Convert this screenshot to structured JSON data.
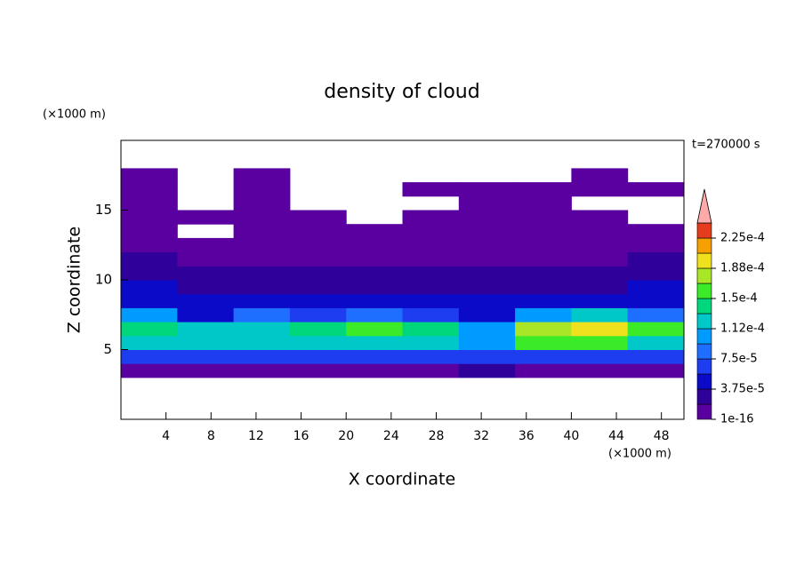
{
  "chart_data": {
    "type": "contour",
    "title": "density of cloud",
    "x_label": "X coordinate",
    "y_label": "Z coordinate",
    "x_unit": "(×1000 m)",
    "y_unit": "(×1000 m)",
    "annotation": "t=270000 s",
    "xlim": [
      0,
      50
    ],
    "ylim": [
      0,
      20
    ],
    "xticks": [
      4,
      8,
      12,
      16,
      20,
      24,
      28,
      32,
      36,
      40,
      44,
      48
    ],
    "yticks": [
      5,
      10,
      15
    ],
    "x_edges": [
      0,
      5,
      10,
      15,
      20,
      25,
      30,
      35,
      40,
      45,
      50
    ],
    "z_edges": [
      3,
      4,
      5,
      6,
      7,
      8,
      9,
      10,
      11,
      12,
      13,
      14,
      15,
      16,
      17,
      18
    ],
    "z": [
      [
        1e-05,
        1e-05,
        1e-05,
        1e-05,
        1e-05,
        1e-05,
        2e-05,
        1e-05,
        1e-05,
        1e-05
      ],
      [
        6e-05,
        6e-05,
        7e-05,
        6e-05,
        6e-05,
        6e-05,
        7e-05,
        6e-05,
        6e-05,
        6e-05
      ],
      [
        0.00013,
        0.00012,
        0.00012,
        0.00013,
        0.00013,
        0.00012,
        0.0001,
        0.00015,
        0.00015,
        0.00013
      ],
      [
        0.00014,
        0.00012,
        0.00013,
        0.00014,
        0.00015,
        0.00014,
        0.00011,
        0.00018,
        0.0002,
        0.00015
      ],
      [
        0.00011,
        5e-05,
        9e-05,
        7e-05,
        8e-05,
        7e-05,
        5e-05,
        0.00011,
        0.00013,
        9e-05
      ],
      [
        5e-05,
        4e-05,
        5e-05,
        4e-05,
        4e-05,
        4e-05,
        4e-05,
        5e-05,
        5e-05,
        5e-05
      ],
      [
        4e-05,
        3e-05,
        3e-05,
        3e-05,
        3e-05,
        3e-05,
        3e-05,
        3e-05,
        3e-05,
        4e-05
      ],
      [
        3e-05,
        2e-05,
        2.5e-05,
        2e-05,
        2e-05,
        2e-05,
        2e-05,
        2e-05,
        2e-05,
        3e-05
      ],
      [
        2e-05,
        1e-05,
        1.5e-05,
        1.5e-05,
        1e-05,
        1.5e-05,
        1.5e-05,
        1e-05,
        1e-05,
        2e-05
      ],
      [
        1e-05,
        5e-06,
        5e-06,
        5e-06,
        1e-05,
        5e-06,
        5e-06,
        5e-06,
        5e-06,
        1e-05
      ],
      [
        5e-06,
        null,
        5e-06,
        5e-06,
        5e-06,
        5e-06,
        5e-06,
        5e-06,
        5e-06,
        5e-06
      ],
      [
        5e-06,
        5e-06,
        5e-06,
        5e-06,
        null,
        5e-06,
        5e-06,
        5e-06,
        5e-06,
        null
      ],
      [
        5e-06,
        null,
        5e-06,
        null,
        null,
        null,
        5e-06,
        5e-06,
        null,
        null
      ],
      [
        5e-06,
        null,
        5e-06,
        null,
        null,
        5e-06,
        5e-06,
        5e-06,
        5e-06,
        5e-06
      ],
      [
        5e-06,
        null,
        5e-06,
        null,
        null,
        null,
        null,
        null,
        5e-06,
        null
      ]
    ],
    "levels": [
      1e-16,
      1.875e-05,
      3.75e-05,
      5.625e-05,
      7.5e-05,
      9.375e-05,
      0.0001125,
      0.00013125,
      0.00015,
      0.00016875,
      0.0001875,
      0.00020625,
      0.000225
    ],
    "colors": [
      "#5a00a0",
      "#30009a",
      "#0a0ac8",
      "#1e3cf0",
      "#1e6eff",
      "#009bff",
      "#00c8c8",
      "#00d77d",
      "#3ceb28",
      "#aae628",
      "#f0e11e",
      "#f5a000",
      "#e63c1e"
    ],
    "extend_color": "#ffaaaa",
    "colorbar_ticks": [
      1e-16,
      {
        "value": 3.75e-05,
        "label": "3.75e-5"
      },
      {
        "value": 7.5e-05,
        "label": "7.5e-5"
      },
      {
        "value": 0.0001125,
        "label": "1.12e-4"
      },
      {
        "value": 0.00015,
        "label": "1.5e-4"
      },
      {
        "value": 0.0001875,
        "label": "1.88e-4"
      },
      {
        "value": 0.000225,
        "label": "2.25e-4"
      }
    ]
  }
}
